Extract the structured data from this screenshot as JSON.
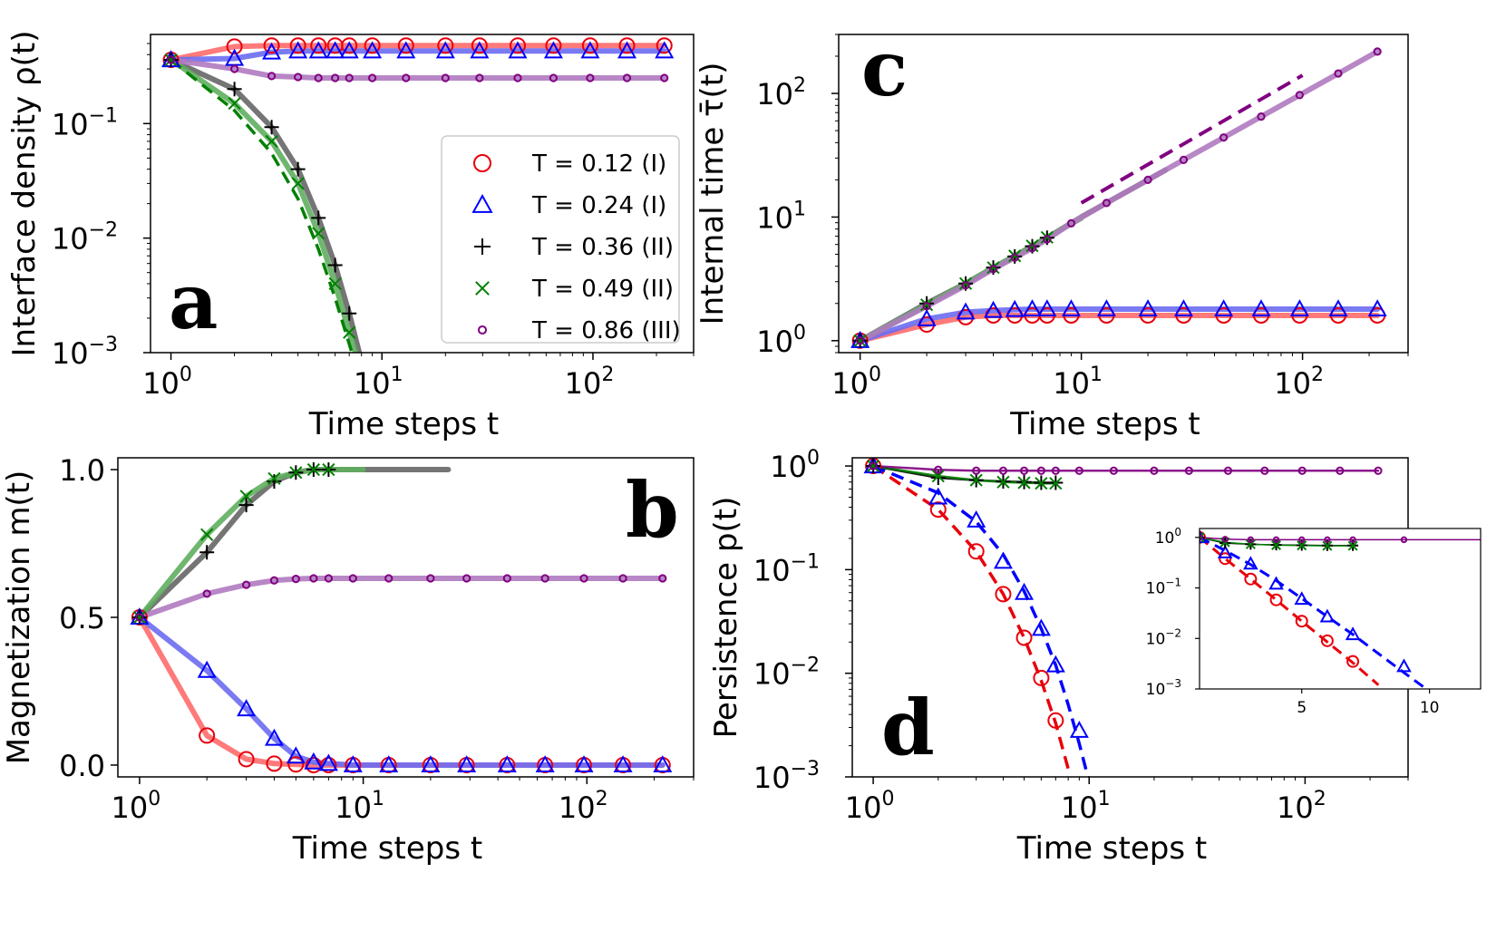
{
  "colors": {
    "T012": "#e8000b",
    "T024": "#0000ff",
    "T036": "#000000",
    "T049": "#008000",
    "T086": "#800080",
    "line_T012": "#ff6b6b",
    "line_T024": "#6b6bf2",
    "line_T036": "#666666",
    "line_T049": "#5fae5f",
    "line_T086": "#b07ac0"
  },
  "chart_data": [
    {
      "panel": "a",
      "type": "line",
      "xscale": "log",
      "yscale": "log",
      "xlabel": "Time steps t",
      "ylabel": "Interface density ρ(t)",
      "xlim": [
        0.8,
        300
      ],
      "ylim": [
        0.001,
        0.6
      ],
      "xticks": [
        "10^0",
        "10^1",
        "10^2"
      ],
      "yticks": [
        "10^-1",
        "10^-2",
        "10^-3"
      ],
      "legend_position": "center-right",
      "legend": [
        "T = 0.12 (I)",
        "T = 0.24 (I)",
        "T = 0.36 (II)",
        "T = 0.49 (II)",
        "T = 0.86 (III)"
      ],
      "series": [
        {
          "name": "T = 0.12 (I)",
          "key": "T012",
          "marker": "circle",
          "x": [
            1,
            2,
            3,
            4,
            5,
            6,
            7,
            9,
            13,
            20,
            29,
            44,
            65,
            97,
            145,
            218
          ],
          "y": [
            0.36,
            0.47,
            0.48,
            0.48,
            0.48,
            0.48,
            0.48,
            0.48,
            0.48,
            0.48,
            0.48,
            0.48,
            0.48,
            0.48,
            0.48,
            0.48
          ]
        },
        {
          "name": "T = 0.24 (I)",
          "key": "T024",
          "marker": "triangle",
          "x": [
            1,
            2,
            3,
            4,
            5,
            6,
            7,
            9,
            13,
            20,
            29,
            44,
            65,
            97,
            145,
            218
          ],
          "y": [
            0.36,
            0.37,
            0.42,
            0.43,
            0.43,
            0.43,
            0.43,
            0.43,
            0.43,
            0.43,
            0.43,
            0.43,
            0.43,
            0.43,
            0.43,
            0.43
          ]
        },
        {
          "name": "T = 0.36 (II)",
          "key": "T036",
          "marker": "plus",
          "x": [
            1,
            2,
            3,
            4,
            5,
            6,
            7,
            7.8
          ],
          "y": [
            0.36,
            0.2,
            0.093,
            0.04,
            0.015,
            0.0058,
            0.0022,
            0.001
          ]
        },
        {
          "name": "T = 0.49 (II)",
          "key": "T049",
          "marker": "x",
          "x": [
            1,
            2,
            3,
            4,
            5,
            6,
            7,
            7.5
          ],
          "y": [
            0.36,
            0.15,
            0.07,
            0.03,
            0.011,
            0.004,
            0.0015,
            0.001
          ],
          "dashed_fit": {
            "x": [
              1,
              2,
              3,
              4,
              5,
              6,
              7.2
            ],
            "y": [
              0.36,
              0.13,
              0.055,
              0.022,
              0.008,
              0.003,
              0.001
            ]
          }
        },
        {
          "name": "T = 0.86 (III)",
          "key": "T086",
          "marker": "dot",
          "x": [
            1,
            2,
            3,
            4,
            5,
            6,
            7,
            9,
            13,
            20,
            29,
            44,
            65,
            97,
            145,
            218
          ],
          "y": [
            0.36,
            0.3,
            0.26,
            0.255,
            0.25,
            0.25,
            0.25,
            0.25,
            0.25,
            0.25,
            0.25,
            0.25,
            0.25,
            0.25,
            0.25,
            0.25
          ]
        }
      ]
    },
    {
      "panel": "b",
      "type": "line",
      "xscale": "log",
      "yscale": "linear",
      "xlabel": "Time steps t",
      "ylabel": "Magnetization m(t)",
      "xlim": [
        0.8,
        300
      ],
      "ylim": [
        -0.04,
        1.04
      ],
      "xticks": [
        "10^0",
        "10^1",
        "10^2"
      ],
      "yticks": [
        "1.0",
        "0.5",
        "0.0"
      ],
      "series": [
        {
          "key": "T012",
          "marker": "circle",
          "x": [
            1,
            2,
            3,
            4,
            5,
            6,
            7,
            9,
            13,
            20,
            29,
            44,
            65,
            97,
            145,
            218
          ],
          "y": [
            0.5,
            0.1,
            0.02,
            0.005,
            0.002,
            0,
            0,
            0,
            0,
            0,
            0,
            0,
            0,
            0,
            0,
            0
          ]
        },
        {
          "key": "T024",
          "marker": "triangle",
          "x": [
            1,
            2,
            3,
            4,
            5,
            6,
            7,
            9,
            13,
            20,
            29,
            44,
            65,
            97,
            145,
            218
          ],
          "y": [
            0.5,
            0.32,
            0.19,
            0.09,
            0.03,
            0.01,
            0.005,
            0,
            0,
            0,
            0,
            0,
            0,
            0,
            0,
            0
          ]
        },
        {
          "key": "T036",
          "marker": "plus",
          "x": [
            1,
            2,
            3,
            4,
            5,
            6,
            7,
            10,
            24
          ],
          "y": [
            0.5,
            0.72,
            0.88,
            0.96,
            0.99,
            1.0,
            1.0,
            1.0,
            1.0
          ]
        },
        {
          "key": "T049",
          "marker": "x",
          "x": [
            1,
            2,
            3,
            4,
            5,
            6,
            7,
            10
          ],
          "y": [
            0.5,
            0.78,
            0.91,
            0.97,
            0.99,
            1.0,
            1.0,
            1.0
          ]
        },
        {
          "key": "T086",
          "marker": "dot",
          "x": [
            1,
            2,
            3,
            4,
            5,
            6,
            7,
            9,
            13,
            20,
            29,
            44,
            65,
            97,
            145,
            218
          ],
          "y": [
            0.5,
            0.58,
            0.61,
            0.625,
            0.63,
            0.632,
            0.632,
            0.632,
            0.632,
            0.632,
            0.632,
            0.632,
            0.632,
            0.632,
            0.632,
            0.632
          ]
        }
      ]
    },
    {
      "panel": "c",
      "type": "line",
      "xscale": "log",
      "yscale": "log",
      "xlabel": "Time steps t",
      "ylabel": "Internal time τ̄(t)",
      "xlim": [
        0.8,
        300
      ],
      "ylim": [
        0.8,
        300
      ],
      "xticks": [
        "10^0",
        "10^1",
        "10^2"
      ],
      "yticks": [
        "10^2",
        "10^1",
        "10^0"
      ],
      "guide_line": {
        "style": "dashed",
        "key": "T086",
        "x": [
          10,
          100
        ],
        "y": [
          13,
          140
        ]
      },
      "series": [
        {
          "key": "T012",
          "marker": "circle",
          "x": [
            1,
            2,
            3,
            4,
            5,
            6,
            7,
            9,
            13,
            20,
            29,
            44,
            65,
            97,
            145,
            218
          ],
          "y": [
            1.0,
            1.35,
            1.55,
            1.6,
            1.6,
            1.6,
            1.6,
            1.6,
            1.6,
            1.6,
            1.6,
            1.6,
            1.6,
            1.6,
            1.6,
            1.6
          ]
        },
        {
          "key": "T024",
          "marker": "triangle",
          "x": [
            1,
            2,
            3,
            4,
            5,
            6,
            7,
            9,
            13,
            20,
            29,
            44,
            65,
            97,
            145,
            218
          ],
          "y": [
            1.0,
            1.5,
            1.7,
            1.75,
            1.78,
            1.8,
            1.8,
            1.8,
            1.8,
            1.8,
            1.8,
            1.8,
            1.8,
            1.8,
            1.8,
            1.8
          ]
        },
        {
          "key": "T036",
          "marker": "plus",
          "x": [
            1,
            2,
            3,
            4,
            5,
            6,
            7,
            10,
            24
          ],
          "y": [
            1.0,
            2.0,
            2.9,
            3.9,
            4.8,
            5.8,
            6.8,
            10,
            24
          ]
        },
        {
          "key": "T049",
          "marker": "x",
          "x": [
            1,
            2,
            3,
            4,
            5,
            6,
            7,
            10
          ],
          "y": [
            1.0,
            1.95,
            2.9,
            3.9,
            4.85,
            5.85,
            6.85,
            9.8
          ]
        },
        {
          "key": "T086",
          "marker": "dot",
          "x": [
            1,
            2,
            3,
            4,
            5,
            6,
            7,
            9,
            13,
            20,
            29,
            44,
            65,
            97,
            145,
            218
          ],
          "y": [
            1.0,
            1.9,
            2.8,
            3.8,
            4.7,
            5.6,
            6.6,
            8.9,
            13,
            20,
            29,
            44,
            65,
            97,
            145,
            218
          ]
        }
      ]
    },
    {
      "panel": "d",
      "type": "line",
      "xscale": "log",
      "yscale": "log",
      "xlabel": "Time steps t",
      "ylabel": "Persistence p(t)",
      "xlim": [
        0.8,
        300
      ],
      "ylim": [
        0.001,
        1.2
      ],
      "xticks": [
        "10^0",
        "10^1",
        "10^2"
      ],
      "yticks": [
        "10^0",
        "10^-1",
        "10^-2",
        "10^-3"
      ],
      "series": [
        {
          "key": "T012",
          "marker": "circle",
          "x": [
            1,
            2,
            3,
            4,
            5,
            6,
            7
          ],
          "y": [
            1.0,
            0.38,
            0.15,
            0.058,
            0.022,
            0.009,
            0.0035
          ],
          "dashed_fit": {
            "x": [
              1,
              2,
              3,
              4,
              5,
              6,
              7,
              8
            ],
            "y": [
              1.0,
              0.38,
              0.15,
              0.058,
              0.022,
              0.0085,
              0.0033,
              0.0012
            ]
          }
        },
        {
          "key": "T024",
          "marker": "triangle",
          "x": [
            1,
            2,
            3,
            4,
            5,
            6,
            7,
            9
          ],
          "y": [
            1.0,
            0.5,
            0.3,
            0.12,
            0.06,
            0.027,
            0.012,
            0.0028
          ],
          "dashed_fit": {
            "x": [
              1,
              2,
              3,
              4,
              5,
              6,
              7,
              8,
              9,
              10
            ],
            "y": [
              1.0,
              0.55,
              0.29,
              0.14,
              0.062,
              0.027,
              0.012,
              0.005,
              0.0021,
              0.0009
            ]
          }
        },
        {
          "key": "T036",
          "marker": "plus",
          "x": [
            1,
            2,
            3,
            4,
            5,
            6,
            7
          ],
          "y": [
            1.0,
            0.77,
            0.73,
            0.71,
            0.7,
            0.69,
            0.69
          ]
        },
        {
          "key": "T049",
          "marker": "x",
          "x": [
            1,
            2,
            3,
            4,
            5,
            6,
            7
          ],
          "y": [
            1.0,
            0.8,
            0.73,
            0.7,
            0.69,
            0.68,
            0.68
          ]
        },
        {
          "key": "T086",
          "marker": "dot",
          "x": [
            1,
            2,
            3,
            4,
            5,
            6,
            7,
            9,
            13,
            20,
            29,
            44,
            65,
            97,
            145,
            218
          ],
          "y": [
            1.0,
            0.92,
            0.9,
            0.9,
            0.9,
            0.9,
            0.9,
            0.9,
            0.9,
            0.9,
            0.9,
            0.9,
            0.9,
            0.9,
            0.9,
            0.9
          ]
        }
      ],
      "inset": {
        "xscale": "linear",
        "yscale": "log",
        "xlim": [
          1,
          12
        ],
        "ylim": [
          0.001,
          1.5
        ],
        "xticks": [
          "5",
          "10"
        ],
        "yticks": [
          "10^0",
          "10^-1",
          "10^-2",
          "10^-3"
        ],
        "series_ref": "same as panel d, linear x-axis"
      }
    }
  ],
  "panels": {
    "a": {
      "letter": "a"
    },
    "b": {
      "letter": "b"
    },
    "c": {
      "letter": "c"
    },
    "d": {
      "letter": "d"
    }
  }
}
